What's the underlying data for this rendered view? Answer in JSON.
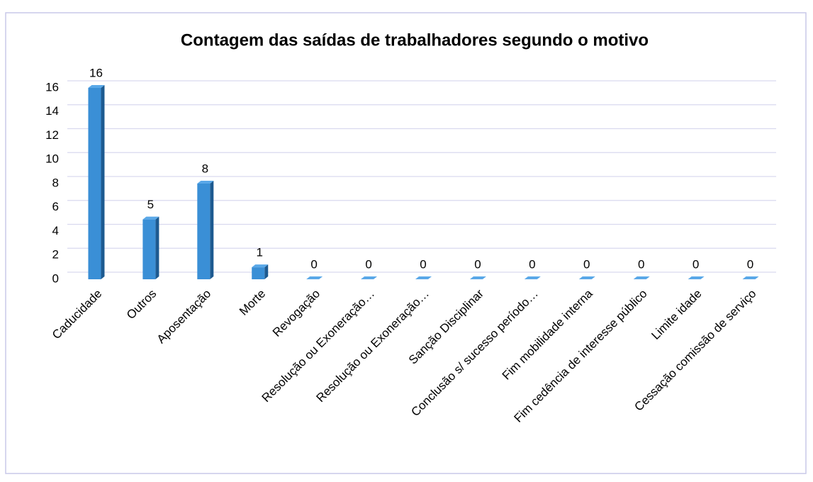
{
  "chart_data": {
    "type": "bar",
    "title": "Contagem das saídas de trabalhadores segundo o motivo",
    "categories": [
      "Caducidade",
      "Outros",
      "Aposentação",
      "Morte",
      "Revogação",
      "Resolução ou Exoneração…",
      "Resolução ou Exoneração…",
      "Sanção Disciplinar",
      "Conclusão s/ sucesso período…",
      "Fim mobilidade interna",
      "Fim cedência de interesse público",
      "Limite idade",
      "Cessação comissão de serviço"
    ],
    "values": [
      16,
      5,
      8,
      1,
      0,
      0,
      0,
      0,
      0,
      0,
      0,
      0,
      0
    ],
    "color": "#3a8fd6",
    "ylim": [
      0,
      16
    ],
    "yticks": [
      0,
      2,
      4,
      6,
      8,
      10,
      12,
      14,
      16
    ],
    "grid": true
  }
}
